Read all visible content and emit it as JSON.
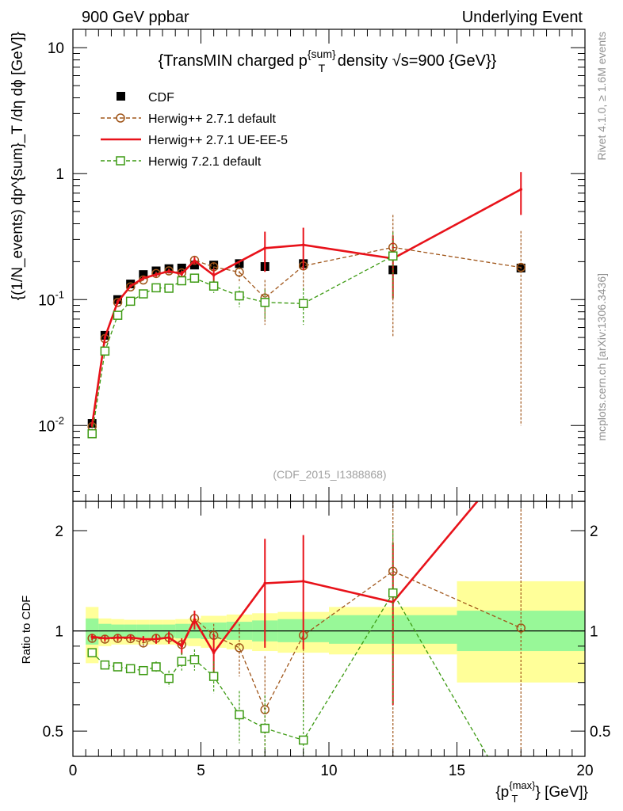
{
  "header": {
    "left": "900 GeV ppbar",
    "right": "Underlying Event"
  },
  "side_text": {
    "rivet": "Rivet 4.1.0, ≥ 1.6M events",
    "mcplots": "mcplots.cern.ch [arXiv:1306.3436]"
  },
  "watermark": "(CDF_2015_I1388868)",
  "colors": {
    "cdf": "#000000",
    "herwig271_default": "#a0561a",
    "herwig271_ueee5": "#e8121a",
    "herwig721_default": "#3c9a12",
    "band_inner": "#98f898",
    "band_outer": "#ffff99"
  },
  "chart_data": [
    {
      "type": "line",
      "panel": "main",
      "title_parts": {
        "pre": "{TransMIN charged p",
        "sup": "{sum}",
        "sub": "T",
        "post": " density √s=900 {GeV}}"
      },
      "ylabel": "{(1/N_events) dp^{sum}_T /dη dϕ [GeV]}",
      "yscale": "log",
      "xlim": [
        0,
        20
      ],
      "ylim": [
        0.0025,
        14
      ],
      "yticks": [
        {
          "value": 0.01,
          "base": "10",
          "exp": "-2"
        },
        {
          "value": 0.1,
          "base": "10",
          "exp": "-1"
        },
        {
          "value": 1,
          "text": "1"
        },
        {
          "value": 10,
          "text": "10"
        }
      ],
      "legend": [
        {
          "key": "cdf",
          "label": "CDF"
        },
        {
          "key": "h271d",
          "label": "Herwig++ 2.7.1 default"
        },
        {
          "key": "h271ue",
          "label": "Herwig++ 2.7.1 UE-EE-5"
        },
        {
          "key": "h721",
          "label": "Herwig 7.2.1 default"
        }
      ],
      "series": [
        {
          "key": "cdf",
          "name": "CDF",
          "style": "square",
          "x": [
            0.75,
            1.25,
            1.75,
            2.25,
            2.75,
            3.25,
            3.75,
            4.25,
            4.75,
            5.5,
            6.5,
            7.5,
            9.0,
            12.5,
            17.5
          ],
          "y": [
            0.0104,
            0.052,
            0.1,
            0.133,
            0.158,
            0.169,
            0.176,
            0.178,
            0.188,
            0.188,
            0.193,
            0.183,
            0.193,
            0.172,
            0.178
          ]
        },
        {
          "key": "h271d",
          "name": "Herwig++ 2.7.1 default",
          "style": "circle-dashed",
          "x": [
            0.75,
            1.25,
            1.75,
            2.25,
            2.75,
            3.25,
            3.75,
            4.25,
            4.75,
            5.5,
            6.5,
            7.5,
            9.0,
            12.5,
            17.5
          ],
          "y": [
            0.0098,
            0.049,
            0.095,
            0.126,
            0.143,
            0.161,
            0.169,
            0.163,
            0.205,
            0.182,
            0.165,
            0.103,
            0.185,
            0.26,
            0.18
          ],
          "err": [
            0.0004,
            0.002,
            0.004,
            0.004,
            0.005,
            0.006,
            0.007,
            0.008,
            0.012,
            0.015,
            0.03,
            0.04,
            0.07,
            0.21,
            0.17
          ]
        },
        {
          "key": "h271ue",
          "name": "Herwig++ 2.7.1 UE-EE-5",
          "style": "solid",
          "x": [
            0.75,
            1.25,
            1.75,
            2.25,
            2.75,
            3.25,
            3.75,
            4.25,
            4.75,
            5.5,
            7.5,
            9.0,
            12.5,
            17.5
          ],
          "y": [
            0.0101,
            0.05,
            0.096,
            0.128,
            0.148,
            0.158,
            0.168,
            0.16,
            0.204,
            0.156,
            0.256,
            0.272,
            0.212,
            0.75
          ],
          "err": [
            0.0004,
            0.002,
            0.004,
            0.004,
            0.005,
            0.006,
            0.007,
            0.009,
            0.014,
            0.02,
            0.09,
            0.1,
            0.11,
            0.28
          ]
        },
        {
          "key": "h721",
          "name": "Herwig 7.2.1 default",
          "style": "square-open-dashed",
          "x": [
            0.75,
            1.25,
            1.75,
            2.25,
            2.75,
            3.25,
            3.75,
            4.25,
            4.75,
            5.5,
            6.5,
            7.5,
            9.0,
            12.5
          ],
          "y": [
            0.0086,
            0.039,
            0.075,
            0.097,
            0.111,
            0.124,
            0.123,
            0.141,
            0.148,
            0.128,
            0.107,
            0.095,
            0.093,
            0.222
          ],
          "err": [
            0.0003,
            0.002,
            0.003,
            0.004,
            0.005,
            0.006,
            0.008,
            0.01,
            0.012,
            0.015,
            0.02,
            0.025,
            0.03,
            0.12
          ]
        }
      ]
    },
    {
      "type": "line",
      "panel": "ratio",
      "ylabel": "Ratio to CDF",
      "xlabel_parts": {
        "pre": "{p",
        "sup": "{max}",
        "sub": "T",
        "post": "} [GeV]}"
      },
      "yscale": "log",
      "xlim": [
        0,
        20
      ],
      "ylim": [
        0.42,
        2.45
      ],
      "xticks": [
        "0",
        "5",
        "10",
        "15",
        "20"
      ],
      "yticks": [
        {
          "value": 0.5,
          "text": "0.5"
        },
        {
          "value": 1,
          "text": "1"
        },
        {
          "value": 2,
          "text": "2"
        }
      ],
      "bands": {
        "edges": [
          0.5,
          1.0,
          1.5,
          2.0,
          2.5,
          3.0,
          3.5,
          4.0,
          4.5,
          5.0,
          6.0,
          7.0,
          8.0,
          10.0,
          15.0,
          20.0
        ],
        "inner_lo": [
          0.91,
          0.95,
          0.955,
          0.955,
          0.955,
          0.955,
          0.955,
          0.95,
          0.95,
          0.945,
          0.94,
          0.93,
          0.925,
          0.915,
          0.87
        ],
        "inner_hi": [
          1.09,
          1.05,
          1.045,
          1.045,
          1.045,
          1.045,
          1.045,
          1.05,
          1.05,
          1.06,
          1.065,
          1.075,
          1.085,
          1.115,
          1.15
        ],
        "outer_lo": [
          0.8,
          0.9,
          0.91,
          0.91,
          0.91,
          0.91,
          0.91,
          0.905,
          0.9,
          0.89,
          0.88,
          0.87,
          0.86,
          0.85,
          0.7
        ],
        "outer_hi": [
          1.18,
          1.09,
          1.085,
          1.08,
          1.08,
          1.08,
          1.08,
          1.085,
          1.09,
          1.11,
          1.12,
          1.13,
          1.14,
          1.18,
          1.41
        ]
      },
      "series": [
        {
          "key": "h271d",
          "style": "circle-dashed",
          "x": [
            0.75,
            1.25,
            1.75,
            2.25,
            2.75,
            3.25,
            3.75,
            4.25,
            4.75,
            5.5,
            6.5,
            7.5,
            9.0,
            12.5,
            17.5
          ],
          "y": [
            0.95,
            0.945,
            0.95,
            0.948,
            0.92,
            0.95,
            0.955,
            0.91,
            1.09,
            0.97,
            0.89,
            0.58,
            0.97,
            1.51,
            1.02
          ],
          "err": [
            0.02,
            0.02,
            0.02,
            0.02,
            0.02,
            0.03,
            0.03,
            0.04,
            0.06,
            0.08,
            0.16,
            0.26,
            0.4,
            1.3,
            1.3
          ]
        },
        {
          "key": "h271ue",
          "style": "solid",
          "x": [
            0.75,
            1.25,
            1.75,
            2.25,
            2.75,
            3.25,
            3.75,
            4.25,
            4.75,
            5.5,
            7.5,
            9.0,
            12.5,
            15.8
          ],
          "y": [
            0.96,
            0.95,
            0.955,
            0.955,
            0.945,
            0.945,
            0.955,
            0.9,
            1.08,
            0.86,
            1.39,
            1.41,
            1.22,
            2.45
          ],
          "err": [
            0.02,
            0.02,
            0.02,
            0.02,
            0.02,
            0.03,
            0.04,
            0.05,
            0.07,
            0.12,
            0.5,
            0.53,
            0.62,
            0
          ]
        },
        {
          "key": "h721",
          "style": "square-open-dashed",
          "x": [
            0.75,
            1.25,
            1.75,
            2.25,
            2.75,
            3.25,
            3.75,
            4.25,
            4.75,
            5.5,
            6.5,
            7.5,
            9.0,
            12.5,
            16.2
          ],
          "y": [
            0.86,
            0.79,
            0.78,
            0.77,
            0.76,
            0.78,
            0.72,
            0.81,
            0.82,
            0.73,
            0.56,
            0.51,
            0.47,
            1.3,
            0.42
          ],
          "err": [
            0.02,
            0.02,
            0.02,
            0.02,
            0.02,
            0.03,
            0.04,
            0.05,
            0.06,
            0.08,
            0.1,
            0.13,
            0.15,
            0.7,
            0
          ]
        }
      ]
    }
  ]
}
